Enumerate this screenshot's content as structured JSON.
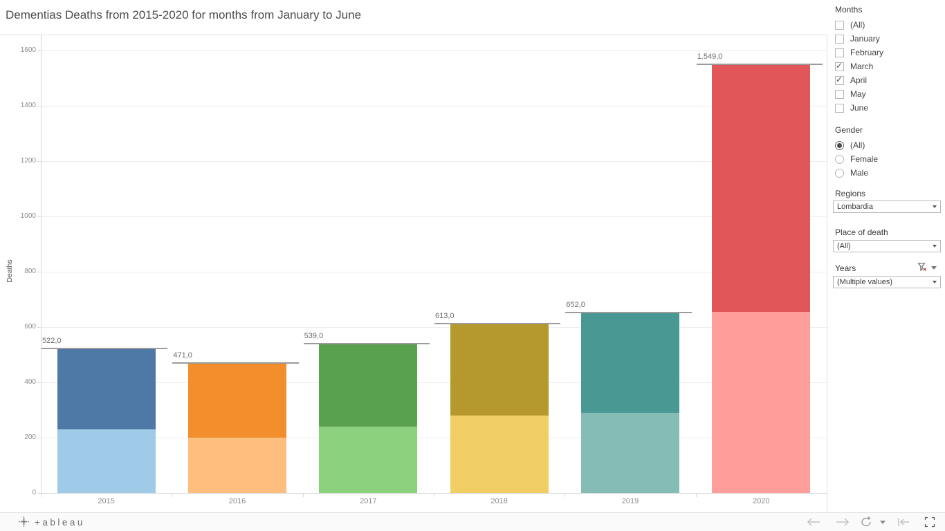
{
  "title": "Dementias Deaths from 2015-2020 for months from January to June",
  "chart_data": {
    "type": "bar",
    "stacked": true,
    "title": "Dementias Deaths from 2015-2020 for months from January to June",
    "categories": [
      "2015",
      "2016",
      "2017",
      "2018",
      "2019",
      "2020"
    ],
    "series": [
      {
        "name": "lower segment (lighter shade, estimated)",
        "values": [
          230,
          200,
          240,
          280,
          290,
          655
        ]
      },
      {
        "name": "upper segment (darker shade, estimated)",
        "values": [
          292,
          271,
          299,
          333,
          362,
          894
        ]
      }
    ],
    "totals": [
      522,
      471,
      539,
      613,
      652,
      1549
    ],
    "total_labels": [
      "522,0",
      "471,0",
      "539,0",
      "613,0",
      "652,0",
      "1.549,0"
    ],
    "ylabel": "Deaths",
    "xlabel": "",
    "yticks": [
      0,
      200,
      400,
      600,
      800,
      1000,
      1200,
      1400,
      1600
    ],
    "ytick_labels": [
      "0",
      "200",
      "400",
      "600",
      "800",
      "1000",
      "1200",
      "1400",
      "1600"
    ],
    "ylim": [
      0,
      1655
    ],
    "grid": true,
    "legend": "none",
    "annotations": "gray reference line with total label above each bar",
    "colors": [
      {
        "light": "#a0cbe8",
        "dark": "#4e79a7"
      },
      {
        "light": "#ffbe7d",
        "dark": "#f28e2b"
      },
      {
        "light": "#8cd17d",
        "dark": "#59a14f"
      },
      {
        "light": "#f1ce63",
        "dark": "#b6992d"
      },
      {
        "light": "#86bcb6",
        "dark": "#499894"
      },
      {
        "light": "#ff9d9a",
        "dark": "#e15759"
      }
    ]
  },
  "filters": {
    "months": {
      "label": "Months",
      "type": "checkbox",
      "options": [
        {
          "label": "(All)",
          "checked": false
        },
        {
          "label": "January",
          "checked": false
        },
        {
          "label": "February",
          "checked": false
        },
        {
          "label": "March",
          "checked": true
        },
        {
          "label": "April",
          "checked": true
        },
        {
          "label": "May",
          "checked": false
        },
        {
          "label": "June",
          "checked": false
        }
      ]
    },
    "gender": {
      "label": "Gender",
      "type": "radio",
      "options": [
        {
          "label": "(All)",
          "selected": true
        },
        {
          "label": "Female",
          "selected": false
        },
        {
          "label": "Male",
          "selected": false
        }
      ]
    },
    "regions": {
      "label": "Regions",
      "value": "Lombardia"
    },
    "place_of_death": {
      "label": "Place of death",
      "value": "(All)"
    },
    "years": {
      "label": "Years",
      "value": "(Multiple values)",
      "icons": [
        "clear-filter-icon",
        "menu-caret-icon",
        "dropdown-caret-icon"
      ]
    }
  },
  "toolbar": {
    "brand": "+ableau",
    "buttons": [
      "tableau-logo",
      "undo",
      "redo",
      "replay",
      "replay-menu-caret",
      "revert-all",
      "fullscreen"
    ]
  }
}
